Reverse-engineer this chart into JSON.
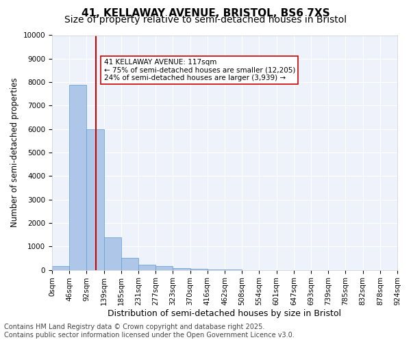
{
  "title_line1": "41, KELLAWAY AVENUE, BRISTOL, BS6 7XS",
  "title_line2": "Size of property relative to semi-detached houses in Bristol",
  "xlabel": "Distribution of semi-detached houses by size in Bristol",
  "ylabel": "Number of semi-detached properties",
  "bin_labels": [
    "0sqm",
    "46sqm",
    "92sqm",
    "139sqm",
    "185sqm",
    "231sqm",
    "277sqm",
    "323sqm",
    "370sqm",
    "416sqm",
    "462sqm",
    "508sqm",
    "554sqm",
    "601sqm",
    "647sqm",
    "693sqm",
    "739sqm",
    "785sqm",
    "832sqm",
    "878sqm",
    "924sqm"
  ],
  "bar_heights": [
    150,
    7900,
    6000,
    1400,
    500,
    230,
    150,
    80,
    50,
    10,
    5,
    2,
    1,
    0,
    0,
    0,
    0,
    0,
    0,
    0
  ],
  "bar_color": "#aec6e8",
  "bar_edge_color": "#5b9bd5",
  "red_line_x": 2.55,
  "red_line_color": "#cc0000",
  "annotation_box_text": "41 KELLAWAY AVENUE: 117sqm\n← 75% of semi-detached houses are smaller (12,205)\n24% of semi-detached houses are larger (3,939) →",
  "ylim": [
    0,
    10000
  ],
  "yticks": [
    0,
    1000,
    2000,
    3000,
    4000,
    5000,
    6000,
    7000,
    8000,
    9000,
    10000
  ],
  "background_color": "#eef2fb",
  "grid_color": "#ffffff",
  "footer_text": "Contains HM Land Registry data © Crown copyright and database right 2025.\nContains public sector information licensed under the Open Government Licence v3.0.",
  "annotation_fontsize": 7.5,
  "title1_fontsize": 11,
  "title2_fontsize": 10,
  "xlabel_fontsize": 9,
  "ylabel_fontsize": 8.5,
  "tick_fontsize": 7.5,
  "footer_fontsize": 7
}
